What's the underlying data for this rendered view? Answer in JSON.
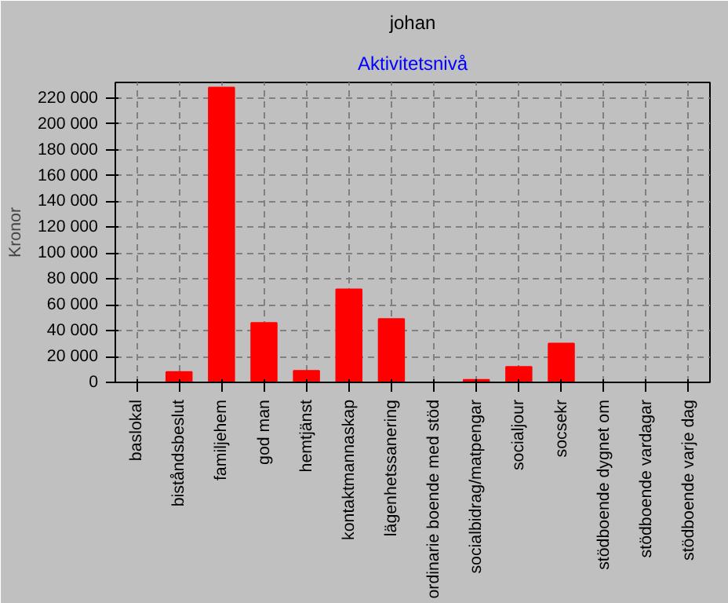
{
  "chart_data": {
    "type": "bar",
    "title": "johan",
    "subtitle": "Aktivitetsnivå",
    "ylabel": "Kronor",
    "categories": [
      "baslokal",
      "biståndsbeslut",
      "familjehem",
      "god man",
      "hemtjänst",
      "kontaktmannaskap",
      "lägenhetssanering",
      "ordinarie boende med stöd",
      "socialbidrag/matpengar",
      "socialjour",
      "socsekr",
      "stödboende dygnet om",
      "stödboende vardagar",
      "stödboende varje dag"
    ],
    "values": [
      0,
      8000,
      228000,
      46000,
      9000,
      72000,
      49000,
      0,
      2000,
      12000,
      30000,
      0,
      0,
      0
    ],
    "color": "#ff0000",
    "ylim": [
      0,
      232000
    ],
    "yticks": [
      0,
      {
        "value": 20000,
        "label": "20 000"
      },
      {
        "value": 40000,
        "label": "40 000"
      },
      {
        "value": 60000,
        "label": "60 000"
      },
      {
        "value": 80000,
        "label": "80 000"
      },
      {
        "value": 100000,
        "label": "100 000"
      },
      {
        "value": 120000,
        "label": "120 000"
      },
      {
        "value": 140000,
        "label": "140 000"
      },
      {
        "value": 160000,
        "label": "160 000"
      },
      {
        "value": 180000,
        "label": "180 000"
      },
      {
        "value": 200000,
        "label": "200 000"
      },
      {
        "value": 220000,
        "label": "220 000"
      }
    ],
    "grid": true
  }
}
